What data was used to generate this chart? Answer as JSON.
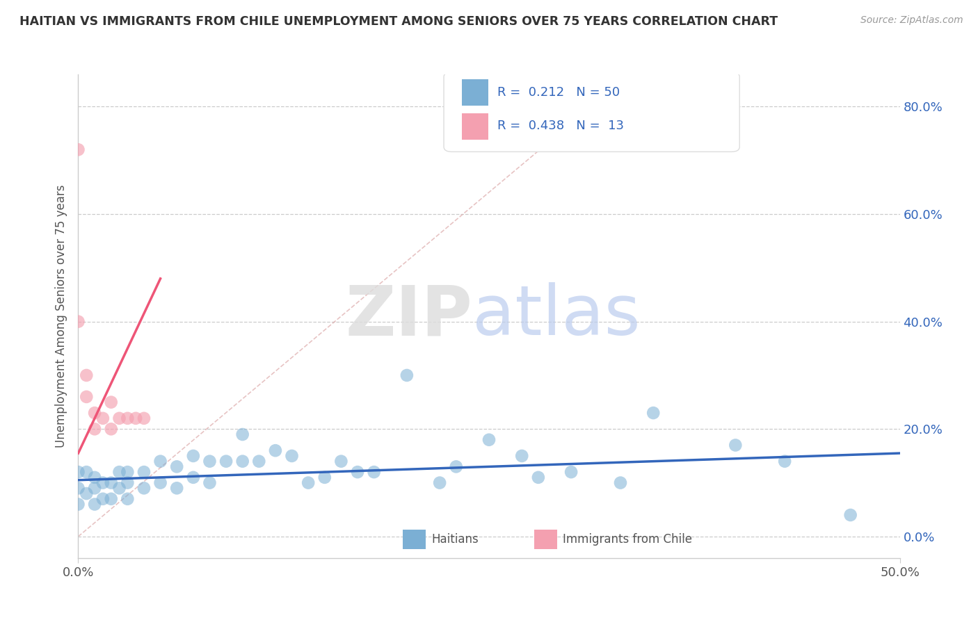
{
  "title": "HAITIAN VS IMMIGRANTS FROM CHILE UNEMPLOYMENT AMONG SENIORS OVER 75 YEARS CORRELATION CHART",
  "source": "Source: ZipAtlas.com",
  "ylabel": "Unemployment Among Seniors over 75 years",
  "yticks_labels": [
    "0.0%",
    "20.0%",
    "40.0%",
    "60.0%",
    "80.0%"
  ],
  "ytick_vals": [
    0.0,
    0.2,
    0.4,
    0.6,
    0.8
  ],
  "xrange": [
    0.0,
    0.5
  ],
  "yrange": [
    -0.04,
    0.86
  ],
  "legend_label1": "Haitians",
  "legend_label2": "Immigrants from Chile",
  "R1": 0.212,
  "N1": 50,
  "R2": 0.438,
  "N2": 13,
  "color_blue": "#7BAFD4",
  "color_pink": "#F4A0B0",
  "color_blue_dark": "#3366BB",
  "color_pink_dark": "#EE5577",
  "color_blue_text": "#3366BB",
  "blue_scatter_x": [
    0.0,
    0.0,
    0.0,
    0.005,
    0.005,
    0.01,
    0.01,
    0.01,
    0.015,
    0.015,
    0.02,
    0.02,
    0.025,
    0.025,
    0.03,
    0.03,
    0.03,
    0.04,
    0.04,
    0.05,
    0.05,
    0.06,
    0.06,
    0.07,
    0.07,
    0.08,
    0.08,
    0.09,
    0.1,
    0.1,
    0.11,
    0.12,
    0.13,
    0.14,
    0.15,
    0.16,
    0.17,
    0.18,
    0.2,
    0.22,
    0.23,
    0.25,
    0.27,
    0.28,
    0.3,
    0.33,
    0.35,
    0.4,
    0.43,
    0.47
  ],
  "blue_scatter_y": [
    0.12,
    0.09,
    0.06,
    0.12,
    0.08,
    0.11,
    0.09,
    0.06,
    0.1,
    0.07,
    0.1,
    0.07,
    0.12,
    0.09,
    0.12,
    0.1,
    0.07,
    0.12,
    0.09,
    0.14,
    0.1,
    0.13,
    0.09,
    0.15,
    0.11,
    0.14,
    0.1,
    0.14,
    0.19,
    0.14,
    0.14,
    0.16,
    0.15,
    0.1,
    0.11,
    0.14,
    0.12,
    0.12,
    0.3,
    0.1,
    0.13,
    0.18,
    0.15,
    0.11,
    0.12,
    0.1,
    0.23,
    0.17,
    0.14,
    0.04
  ],
  "pink_scatter_x": [
    0.0,
    0.0,
    0.005,
    0.005,
    0.01,
    0.01,
    0.015,
    0.02,
    0.02,
    0.025,
    0.03,
    0.035,
    0.04
  ],
  "pink_scatter_y": [
    0.72,
    0.4,
    0.3,
    0.26,
    0.23,
    0.2,
    0.22,
    0.25,
    0.2,
    0.22,
    0.22,
    0.22,
    0.22
  ],
  "blue_line_x": [
    0.0,
    0.5
  ],
  "blue_line_y": [
    0.105,
    0.155
  ],
  "pink_line_x": [
    0.0,
    0.05
  ],
  "pink_line_y": [
    0.155,
    0.48
  ],
  "diag_line_x": [
    0.0,
    0.32
  ],
  "diag_line_y": [
    0.0,
    0.82
  ]
}
